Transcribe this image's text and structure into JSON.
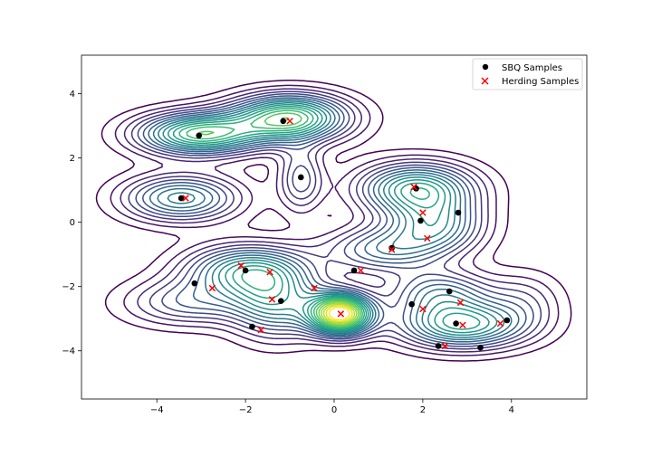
{
  "chart_data": {
    "type": "scatter",
    "title": "",
    "xlabel": "",
    "ylabel": "",
    "xlim": [
      -5.7,
      5.7
    ],
    "ylim": [
      -5.5,
      5.2
    ],
    "xticks": [
      -4,
      -2,
      0,
      2,
      4
    ],
    "yticks": [
      -4,
      -2,
      0,
      2,
      4
    ],
    "grid": false,
    "legend_position": "top-right",
    "background": "contour plot of a multimodal density (viridis colormap)",
    "modes": [
      {
        "x": -3.05,
        "y": 2.75,
        "sx": 0.95,
        "sy": 0.45,
        "w": 0.9
      },
      {
        "x": -1.0,
        "y": 3.25,
        "sx": 0.9,
        "sy": 0.5,
        "w": 0.95
      },
      {
        "x": -0.75,
        "y": 1.35,
        "sx": 0.35,
        "sy": 0.7,
        "w": 0.35
      },
      {
        "x": -3.45,
        "y": 0.75,
        "sx": 0.9,
        "sy": 0.5,
        "w": 0.6
      },
      {
        "x": 1.85,
        "y": 1.05,
        "sx": 0.9,
        "sy": 0.55,
        "w": 0.75
      },
      {
        "x": 2.3,
        "y": -0.1,
        "sx": 0.75,
        "sy": 0.6,
        "w": 0.55
      },
      {
        "x": 1.1,
        "y": -0.85,
        "sx": 0.9,
        "sy": 0.5,
        "w": 0.45
      },
      {
        "x": -2.0,
        "y": -1.5,
        "sx": 0.95,
        "sy": 0.55,
        "w": 0.65
      },
      {
        "x": -1.3,
        "y": -2.5,
        "sx": 0.7,
        "sy": 0.75,
        "w": 0.55
      },
      {
        "x": -3.3,
        "y": -2.5,
        "sx": 1.0,
        "sy": 0.5,
        "w": 0.35
      },
      {
        "x": 0.15,
        "y": -2.85,
        "sx": 0.5,
        "sy": 0.45,
        "w": 1.3
      },
      {
        "x": 2.9,
        "y": -3.2,
        "sx": 1.0,
        "sy": 0.5,
        "w": 0.75
      },
      {
        "x": 2.4,
        "y": -2.2,
        "sx": 0.8,
        "sy": 0.5,
        "w": 0.45
      },
      {
        "x": 4.3,
        "y": -2.4,
        "sx": 0.6,
        "sy": 0.6,
        "w": 0.2
      }
    ],
    "series": [
      {
        "name": "SBQ Samples",
        "marker": "circle",
        "color": "#000000",
        "x": [
          -3.05,
          -1.15,
          -0.75,
          -3.45,
          1.85,
          1.95,
          2.8,
          1.3,
          0.45,
          -3.15,
          -2.0,
          -1.2,
          -1.85,
          1.75,
          2.6,
          2.75,
          3.3,
          2.35,
          3.9
        ],
        "y": [
          2.7,
          3.15,
          1.4,
          0.75,
          1.05,
          0.05,
          0.3,
          -0.8,
          -1.5,
          -1.9,
          -1.5,
          -2.45,
          -3.25,
          -2.55,
          -2.15,
          -3.15,
          -3.9,
          -3.85,
          -3.05
        ]
      },
      {
        "name": "Herding Samples",
        "marker": "x",
        "color": "#ff0000",
        "x": [
          -3.35,
          -1.0,
          1.8,
          2.0,
          2.1,
          1.3,
          0.6,
          -2.1,
          -2.75,
          -1.45,
          -1.4,
          -1.65,
          -0.45,
          0.15,
          2.0,
          2.85,
          2.9,
          3.75,
          2.5
        ],
        "y": [
          0.75,
          3.15,
          1.1,
          0.3,
          -0.5,
          -0.85,
          -1.5,
          -1.35,
          -2.05,
          -1.55,
          -2.4,
          -3.35,
          -2.05,
          -2.85,
          -2.7,
          -2.5,
          -3.2,
          -3.15,
          -3.85
        ]
      }
    ]
  }
}
